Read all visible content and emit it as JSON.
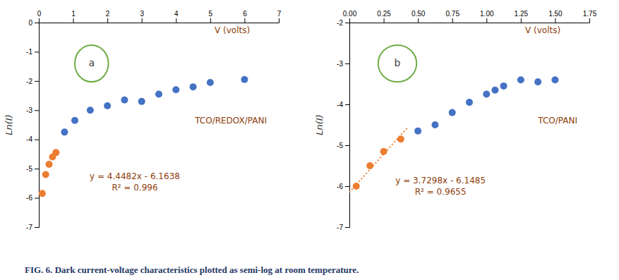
{
  "caption": [
    "FIG. 6.",
    " Dark current-voltage characteristics plotted as semi-log at room temperature."
  ],
  "chart_data": [
    {
      "type": "scatter",
      "title": "TCO/REDOX/PANI",
      "xlabel": "V (volts)",
      "ylabel": "Ln(I)",
      "xlim": [
        0,
        7
      ],
      "ylim": [
        -7,
        0
      ],
      "xticks": [
        0,
        1,
        2,
        3,
        4,
        5,
        6,
        7
      ],
      "yticks": [
        0,
        -1,
        -2,
        -3,
        -4,
        -5,
        -6,
        -7
      ],
      "series": [
        {
          "type": "scatter",
          "color": "#4472C4",
          "x": [
            0.75,
            1.05,
            1.5,
            2.0,
            2.5,
            3.0,
            3.5,
            4.0,
            4.5,
            5.0,
            6.0
          ],
          "values": [
            -3.75,
            -3.35,
            -3.0,
            -2.85,
            -2.65,
            -2.7,
            -2.45,
            -2.3,
            -2.2,
            -2.05,
            -1.95
          ]
        },
        {
          "type": "scatter",
          "color": "#ED7D31",
          "x": [
            0.1,
            0.2,
            0.3,
            0.4,
            0.5
          ],
          "values": [
            -5.85,
            -5.2,
            -4.85,
            -4.6,
            -4.45
          ]
        }
      ],
      "annotations": [
        "y = 4.4482x - 6.1638",
        "R² = 0.996",
        "a"
      ]
    },
    {
      "type": "scatter",
      "title": "TCO/PANI",
      "xlabel": "V (volts)",
      "ylabel": "Ln(I)",
      "xlim": [
        0,
        1.75
      ],
      "ylim": [
        -7,
        -2
      ],
      "xticks": [
        {
          "value": 0,
          "label": "0.00"
        },
        0.25,
        {
          "value": 0.5,
          "label": "0.50"
        },
        0.75,
        {
          "value": 1.0,
          "label": "1.00"
        },
        1.25,
        {
          "value": 1.5,
          "label": "1.50"
        },
        1.75
      ],
      "yticks": [
        -2,
        -3,
        -4,
        -5,
        -6,
        -7
      ],
      "series": [
        {
          "type": "scatter",
          "color": "#4472C4",
          "x": [
            0.5,
            0.625,
            0.75,
            0.875,
            1.0,
            1.0625,
            1.125,
            1.25,
            1.375,
            1.5
          ],
          "values": [
            -4.65,
            -4.5,
            -4.2,
            -3.95,
            -3.75,
            -3.65,
            -3.55,
            -3.4,
            -3.45,
            -3.4
          ]
        },
        {
          "type": "scatter",
          "color": "#ED7D31",
          "x": [
            0.05,
            0.15,
            0.25,
            0.375
          ],
          "values": [
            -6.0,
            -5.5,
            -5.15,
            -4.85
          ]
        },
        {
          "type": "line",
          "line_style": "dotted",
          "color": "#ED7D31",
          "x": [
            0.0,
            0.43
          ],
          "values": [
            -6.1485,
            -4.544686
          ]
        }
      ],
      "annotations": [
        "y = 3.7298x - 6.1485",
        "R² = 0.9655",
        "b"
      ]
    }
  ]
}
